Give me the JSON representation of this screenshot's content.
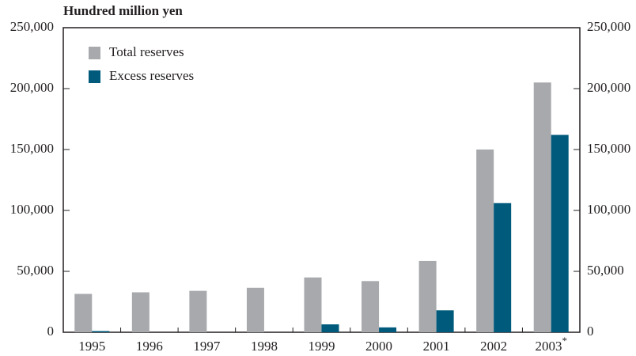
{
  "chart_data": {
    "type": "bar",
    "y_axis_label": "Hundred million yen",
    "categories": [
      "1995",
      "1996",
      "1997",
      "1998",
      "1999",
      "2000",
      "2001",
      "2002",
      "2003"
    ],
    "category_footnote": {
      "index": 8,
      "mark": "*"
    },
    "series": [
      {
        "name": "Total reserves",
        "color": "#a7a9ac",
        "values": [
          31500,
          32800,
          34000,
          36500,
          45000,
          42000,
          58500,
          150000,
          205000
        ]
      },
      {
        "name": "Excess reserves",
        "color": "#005a7c",
        "values": [
          1000,
          0,
          0,
          0,
          6500,
          4000,
          18000,
          106000,
          162000
        ]
      }
    ],
    "ylim": [
      0,
      250000
    ],
    "yticks": [
      0,
      {
        "value": 50000,
        "label": "50,000"
      },
      {
        "value": 100000,
        "label": "100,000"
      },
      {
        "value": 150000,
        "label": "150,000"
      },
      {
        "value": 200000,
        "label": "200,000"
      },
      {
        "value": 250000,
        "label": "250,000"
      }
    ],
    "y2lim": [
      0,
      250000
    ],
    "y2ticks": [
      0,
      {
        "value": 50000,
        "label": "50,000"
      },
      {
        "value": 100000,
        "label": "100,000"
      },
      {
        "value": 150000,
        "label": "150,000"
      },
      {
        "value": 200000,
        "label": "200,000"
      },
      {
        "value": 250000,
        "label": "250,000"
      }
    ],
    "grid": false,
    "legend": "top-left"
  }
}
